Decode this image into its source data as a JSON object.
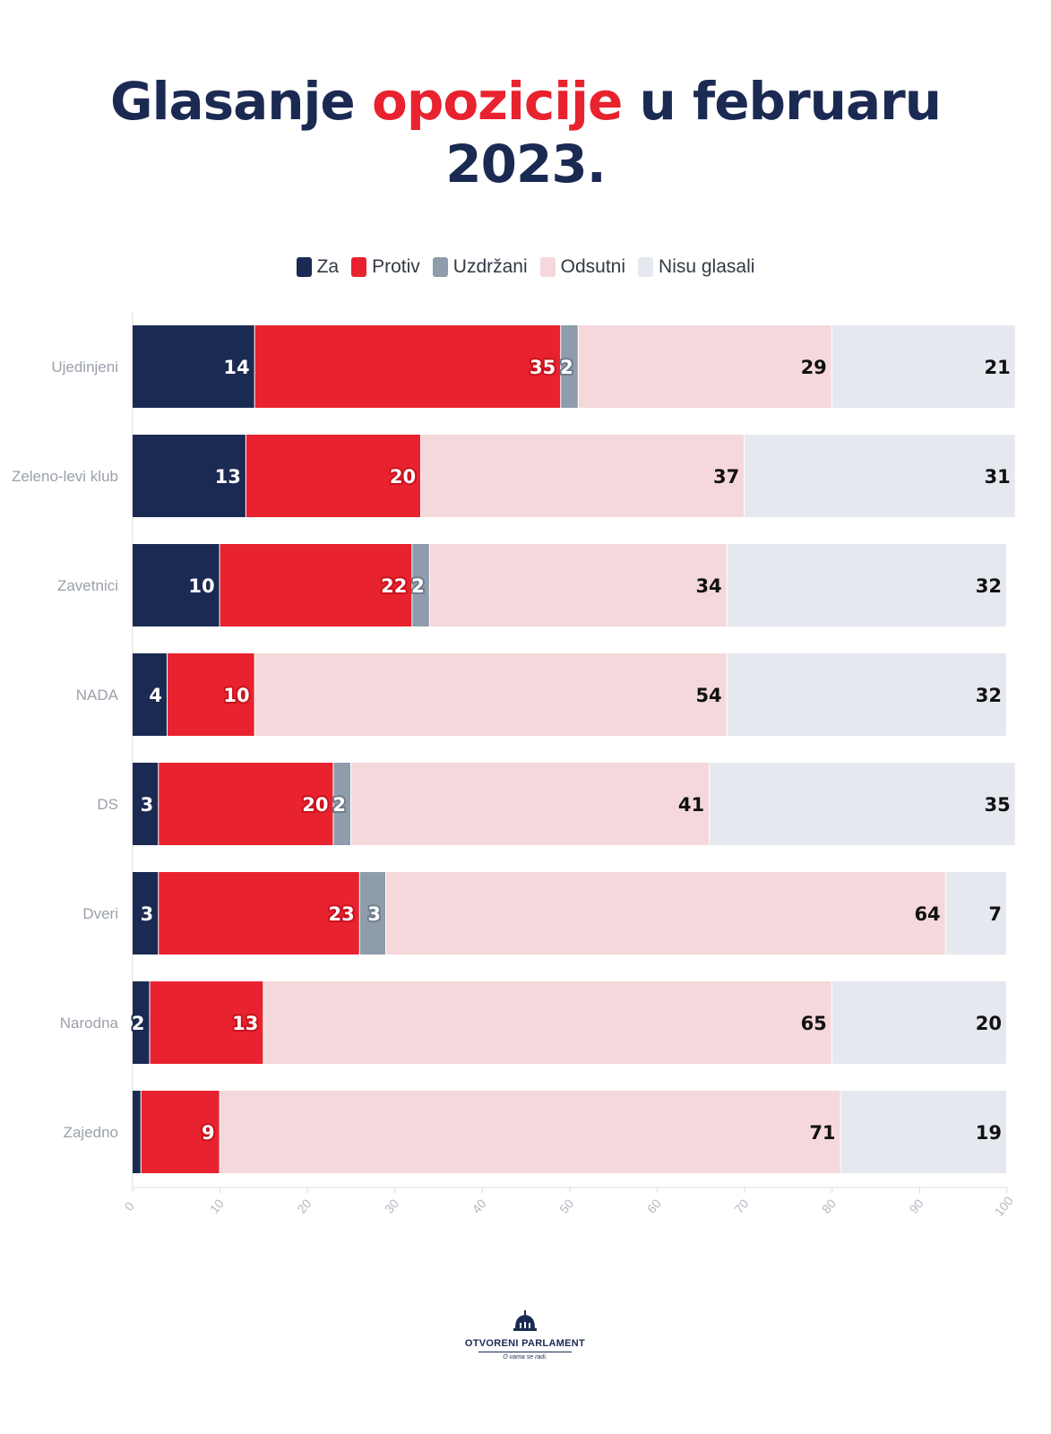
{
  "title": {
    "part1": "Glasanje ",
    "accent": "opozicije",
    "part2": " u februaru",
    "line2": "2023."
  },
  "legend": [
    {
      "label": "Za",
      "color": "#1b2a52"
    },
    {
      "label": "Protiv",
      "color": "#e8222e"
    },
    {
      "label": "Uzdržani",
      "color": "#8e9cac"
    },
    {
      "label": "Odsutni",
      "color": "#f5d8db"
    },
    {
      "label": "Nisu glasali",
      "color": "#e6e8ef"
    }
  ],
  "chart_data": {
    "type": "bar",
    "orientation": "horizontal",
    "stacked": true,
    "categories": [
      "Ujedinjeni",
      "Zeleno-levi klub",
      "Zavetnici",
      "NADA",
      "DS",
      "Dveri",
      "Narodna",
      "Zajedno"
    ],
    "series": [
      {
        "name": "Za",
        "color": "#1b2a52",
        "values": [
          14,
          13,
          10,
          4,
          3,
          3,
          2,
          1
        ]
      },
      {
        "name": "Protiv",
        "color": "#e8222e",
        "values": [
          35,
          20,
          22,
          10,
          20,
          23,
          13,
          9
        ]
      },
      {
        "name": "Uzdržani",
        "color": "#8e9cac",
        "values": [
          2,
          0,
          2,
          0,
          2,
          3,
          0,
          0
        ]
      },
      {
        "name": "Odsutni",
        "color": "#f5d8db",
        "values": [
          29,
          37,
          34,
          54,
          41,
          64,
          65,
          71
        ]
      },
      {
        "name": "Nisu glasali",
        "color": "#e6e8ef",
        "values": [
          21,
          31,
          32,
          32,
          35,
          7,
          20,
          19
        ]
      }
    ],
    "xlim": [
      0,
      100
    ],
    "xticks": [
      0,
      10,
      20,
      30,
      40,
      50,
      60,
      70,
      80,
      90,
      100
    ],
    "legend_position": "top-center",
    "grid": false
  },
  "logo": {
    "name": "OTVORENI PARLAMENT",
    "tagline": "O vama se radi."
  }
}
